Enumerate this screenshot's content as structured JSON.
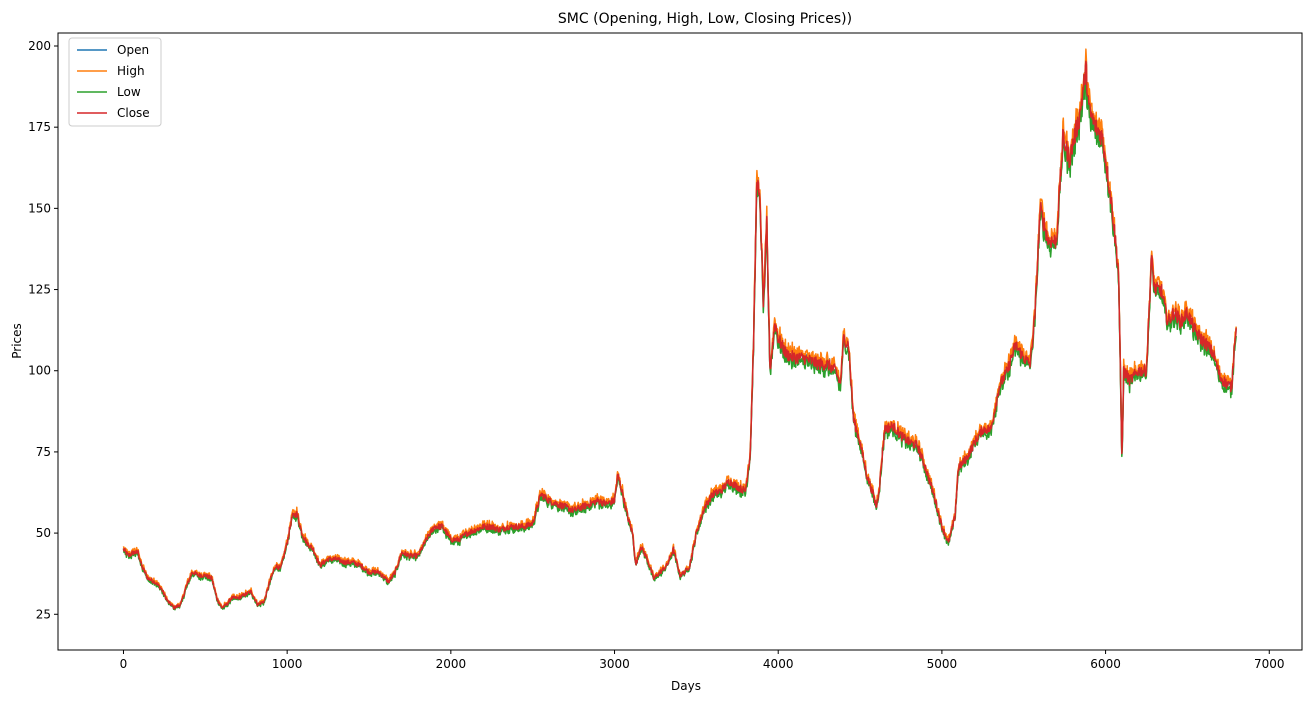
{
  "chart_data": {
    "type": "line",
    "title": "SMC (Opening, High, Low, Closing Prices))",
    "xlabel": "Days",
    "ylabel": "Prices",
    "xlim": [
      -400,
      7200
    ],
    "ylim": [
      14,
      204
    ],
    "x_ticks": [
      0,
      1000,
      2000,
      3000,
      4000,
      5000,
      6000,
      7000
    ],
    "y_ticks": [
      25,
      50,
      75,
      100,
      125,
      150,
      175,
      200
    ],
    "grid": false,
    "legend_position": "upper-left",
    "series": [
      {
        "name": "Open",
        "color": "#1f77b4"
      },
      {
        "name": "High",
        "color": "#ff7f0e"
      },
      {
        "name": "Low",
        "color": "#2ca02c"
      },
      {
        "name": "Close",
        "color": "#d62728"
      }
    ],
    "close_anchor_points": [
      [
        0,
        45
      ],
      [
        30,
        43
      ],
      [
        60,
        44
      ],
      [
        90,
        44
      ],
      [
        110,
        40
      ],
      [
        150,
        36
      ],
      [
        190,
        35
      ],
      [
        230,
        33
      ],
      [
        270,
        29
      ],
      [
        310,
        27
      ],
      [
        350,
        28
      ],
      [
        380,
        33
      ],
      [
        420,
        38
      ],
      [
        460,
        37
      ],
      [
        500,
        37
      ],
      [
        540,
        36
      ],
      [
        570,
        30
      ],
      [
        600,
        27
      ],
      [
        630,
        28
      ],
      [
        660,
        30
      ],
      [
        700,
        30
      ],
      [
        740,
        31
      ],
      [
        780,
        32
      ],
      [
        820,
        28
      ],
      [
        860,
        29
      ],
      [
        900,
        36
      ],
      [
        930,
        40
      ],
      [
        960,
        39
      ],
      [
        1000,
        47
      ],
      [
        1030,
        55
      ],
      [
        1060,
        56
      ],
      [
        1090,
        50
      ],
      [
        1120,
        47
      ],
      [
        1160,
        45
      ],
      [
        1200,
        40
      ],
      [
        1250,
        42
      ],
      [
        1300,
        42
      ],
      [
        1350,
        41
      ],
      [
        1400,
        41
      ],
      [
        1450,
        40
      ],
      [
        1500,
        38
      ],
      [
        1560,
        38
      ],
      [
        1620,
        35
      ],
      [
        1660,
        38
      ],
      [
        1700,
        44
      ],
      [
        1750,
        43
      ],
      [
        1800,
        43
      ],
      [
        1850,
        48
      ],
      [
        1900,
        52
      ],
      [
        1950,
        52
      ],
      [
        2000,
        48
      ],
      [
        2050,
        48
      ],
      [
        2100,
        50
      ],
      [
        2150,
        51
      ],
      [
        2200,
        52
      ],
      [
        2250,
        52
      ],
      [
        2300,
        51
      ],
      [
        2350,
        52
      ],
      [
        2400,
        52
      ],
      [
        2450,
        52
      ],
      [
        2500,
        53
      ],
      [
        2550,
        62
      ],
      [
        2600,
        60
      ],
      [
        2650,
        59
      ],
      [
        2700,
        58
      ],
      [
        2750,
        57
      ],
      [
        2800,
        58
      ],
      [
        2850,
        59
      ],
      [
        2900,
        60
      ],
      [
        2950,
        59
      ],
      [
        3000,
        60
      ],
      [
        3020,
        68
      ],
      [
        3050,
        62
      ],
      [
        3080,
        55
      ],
      [
        3110,
        50
      ],
      [
        3130,
        40
      ],
      [
        3160,
        46
      ],
      [
        3200,
        42
      ],
      [
        3240,
        36
      ],
      [
        3280,
        38
      ],
      [
        3320,
        40
      ],
      [
        3360,
        45
      ],
      [
        3400,
        37
      ],
      [
        3430,
        38
      ],
      [
        3460,
        40
      ],
      [
        3500,
        50
      ],
      [
        3550,
        58
      ],
      [
        3600,
        62
      ],
      [
        3650,
        63
      ],
      [
        3700,
        66
      ],
      [
        3760,
        64
      ],
      [
        3800,
        63
      ],
      [
        3830,
        75
      ],
      [
        3850,
        110
      ],
      [
        3870,
        160
      ],
      [
        3890,
        150
      ],
      [
        3910,
        120
      ],
      [
        3930,
        145
      ],
      [
        3950,
        100
      ],
      [
        3980,
        115
      ],
      [
        4000,
        110
      ],
      [
        4050,
        105
      ],
      [
        4100,
        104
      ],
      [
        4150,
        104
      ],
      [
        4200,
        103
      ],
      [
        4250,
        102
      ],
      [
        4300,
        102
      ],
      [
        4350,
        100
      ],
      [
        4380,
        96
      ],
      [
        4400,
        110
      ],
      [
        4430,
        108
      ],
      [
        4460,
        85
      ],
      [
        4500,
        78
      ],
      [
        4540,
        68
      ],
      [
        4580,
        62
      ],
      [
        4600,
        58
      ],
      [
        4620,
        65
      ],
      [
        4650,
        82
      ],
      [
        4700,
        83
      ],
      [
        4750,
        80
      ],
      [
        4800,
        78
      ],
      [
        4850,
        77
      ],
      [
        4900,
        70
      ],
      [
        4950,
        62
      ],
      [
        5000,
        52
      ],
      [
        5040,
        47
      ],
      [
        5080,
        55
      ],
      [
        5100,
        70
      ],
      [
        5150,
        73
      ],
      [
        5200,
        78
      ],
      [
        5250,
        82
      ],
      [
        5300,
        82
      ],
      [
        5350,
        95
      ],
      [
        5400,
        100
      ],
      [
        5450,
        108
      ],
      [
        5500,
        104
      ],
      [
        5540,
        102
      ],
      [
        5570,
        118
      ],
      [
        5600,
        150
      ],
      [
        5650,
        140
      ],
      [
        5700,
        140
      ],
      [
        5740,
        172
      ],
      [
        5780,
        165
      ],
      [
        5800,
        170
      ],
      [
        5840,
        178
      ],
      [
        5880,
        193
      ],
      [
        5900,
        180
      ],
      [
        5940,
        175
      ],
      [
        5980,
        172
      ],
      [
        6000,
        165
      ],
      [
        6040,
        150
      ],
      [
        6080,
        130
      ],
      [
        6100,
        72
      ],
      [
        6110,
        100
      ],
      [
        6150,
        97
      ],
      [
        6200,
        100
      ],
      [
        6250,
        100
      ],
      [
        6280,
        135
      ],
      [
        6300,
        125
      ],
      [
        6340,
        125
      ],
      [
        6380,
        115
      ],
      [
        6420,
        118
      ],
      [
        6460,
        115
      ],
      [
        6500,
        118
      ],
      [
        6540,
        113
      ],
      [
        6580,
        110
      ],
      [
        6620,
        108
      ],
      [
        6660,
        105
      ],
      [
        6700,
        98
      ],
      [
        6740,
        96
      ],
      [
        6770,
        95
      ],
      [
        6790,
        110
      ],
      [
        6800,
        115
      ]
    ]
  }
}
